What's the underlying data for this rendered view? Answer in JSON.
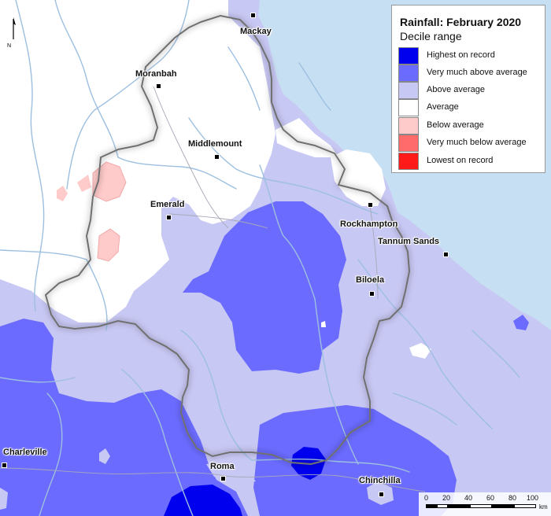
{
  "legend": {
    "title": "Rainfall: February 2020",
    "subtitle": "Decile range",
    "items": [
      {
        "label": "Highest on record",
        "color": "#0000ee"
      },
      {
        "label": "Very much above average",
        "color": "#6b6bff"
      },
      {
        "label": "Above average",
        "color": "#c8c8f4"
      },
      {
        "label": "Average",
        "color": "#ffffff"
      },
      {
        "label": "Below average",
        "color": "#ffcaca"
      },
      {
        "label": "Very much below average",
        "color": "#ff6a6a"
      },
      {
        "label": "Lowest on record",
        "color": "#ff1a1a"
      }
    ]
  },
  "towns": [
    {
      "name": "Mackay"
    },
    {
      "name": "Moranbah"
    },
    {
      "name": "Middlemount"
    },
    {
      "name": "Emerald"
    },
    {
      "name": "Rockhampton"
    },
    {
      "name": "Tannum Sands"
    },
    {
      "name": "Biloela"
    },
    {
      "name": "Charleville"
    },
    {
      "name": "Roma"
    },
    {
      "name": "Chinchilla"
    }
  ],
  "north_arrow": {
    "label": "N"
  },
  "scale": {
    "ticks": [
      "0",
      "20",
      "40",
      "60",
      "80",
      "100"
    ],
    "unit": "km"
  },
  "colors": {
    "ocean": "#c7dff2",
    "rivers": "#9dbfe0",
    "region_outline": "#808080"
  }
}
